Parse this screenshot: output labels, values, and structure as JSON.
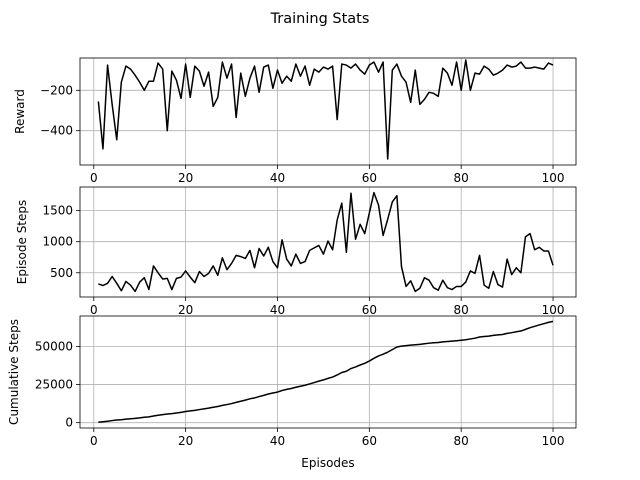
{
  "figure_title": "Training Stats",
  "chart_data": [
    {
      "type": "line",
      "title": "",
      "xlabel": "",
      "ylabel": "Reward",
      "xlim": [
        -3,
        105
      ],
      "ylim": [
        -570,
        -40
      ],
      "xticks": [
        0,
        20,
        40,
        60,
        80,
        100
      ],
      "xtick_labels": [
        "0",
        "20",
        "40",
        "60",
        "80",
        "100"
      ],
      "yticks": [
        -200,
        -400
      ],
      "ytick_labels": [
        "−200",
        "−400"
      ],
      "grid": true,
      "series": [
        {
          "name": "",
          "color": "#000000",
          "x": [
            1,
            2,
            3,
            4,
            5,
            6,
            7,
            8,
            9,
            10,
            11,
            12,
            13,
            14,
            15,
            16,
            17,
            18,
            19,
            20,
            21,
            22,
            23,
            24,
            25,
            26,
            27,
            28,
            29,
            30,
            31,
            32,
            33,
            34,
            35,
            36,
            37,
            38,
            39,
            40,
            41,
            42,
            43,
            44,
            45,
            46,
            47,
            48,
            49,
            50,
            51,
            52,
            53,
            54,
            55,
            56,
            57,
            58,
            59,
            60,
            61,
            62,
            63,
            64,
            65,
            66,
            67,
            68,
            69,
            70,
            71,
            72,
            73,
            74,
            75,
            76,
            77,
            78,
            79,
            80,
            81,
            82,
            83,
            84,
            85,
            86,
            87,
            88,
            89,
            90,
            91,
            92,
            93,
            94,
            95,
            96,
            97,
            98,
            99,
            100
          ],
          "values": [
            -255,
            -490,
            -75,
            -270,
            -445,
            -160,
            -80,
            -95,
            -125,
            -160,
            -200,
            -155,
            -155,
            -65,
            -95,
            -400,
            -105,
            -150,
            -240,
            -70,
            -235,
            -80,
            -105,
            -180,
            -110,
            -280,
            -235,
            -60,
            -140,
            -70,
            -335,
            -115,
            -230,
            -140,
            -80,
            -210,
            -85,
            -75,
            -190,
            -100,
            -165,
            -130,
            -155,
            -70,
            -130,
            -80,
            -175,
            -95,
            -110,
            -85,
            -95,
            -80,
            -345,
            -70,
            -75,
            -90,
            -70,
            -100,
            -120,
            -75,
            -60,
            -110,
            -60,
            -540,
            -100,
            -70,
            -130,
            -160,
            -260,
            -100,
            -270,
            -245,
            -210,
            -215,
            -230,
            -90,
            -115,
            -175,
            -60,
            -200,
            -50,
            -200,
            -115,
            -120,
            -80,
            -95,
            -125,
            -115,
            -100,
            -75,
            -85,
            -80,
            -60,
            -90,
            -90,
            -85,
            -90,
            -95,
            -65,
            -75
          ]
        }
      ]
    },
    {
      "type": "line",
      "title": "",
      "xlabel": "",
      "ylabel": "Episode Steps",
      "xlim": [
        -3,
        105
      ],
      "ylim": [
        110,
        1880
      ],
      "xticks": [
        0,
        20,
        40,
        60,
        80,
        100
      ],
      "xtick_labels": [
        "0",
        "20",
        "40",
        "60",
        "80",
        "100"
      ],
      "yticks": [
        500,
        1000,
        1500
      ],
      "ytick_labels": [
        "500",
        "1000",
        "1500"
      ],
      "grid": true,
      "series": [
        {
          "name": "",
          "color": "#000000",
          "x": [
            1,
            2,
            3,
            4,
            5,
            6,
            7,
            8,
            9,
            10,
            11,
            12,
            13,
            14,
            15,
            16,
            17,
            18,
            19,
            20,
            21,
            22,
            23,
            24,
            25,
            26,
            27,
            28,
            29,
            30,
            31,
            32,
            33,
            34,
            35,
            36,
            37,
            38,
            39,
            40,
            41,
            42,
            43,
            44,
            45,
            46,
            47,
            48,
            49,
            50,
            51,
            52,
            53,
            54,
            55,
            56,
            57,
            58,
            59,
            60,
            61,
            62,
            63,
            64,
            65,
            66,
            67,
            68,
            69,
            70,
            71,
            72,
            73,
            74,
            75,
            76,
            77,
            78,
            79,
            80,
            81,
            82,
            83,
            84,
            85,
            86,
            87,
            88,
            89,
            90,
            91,
            92,
            93,
            94,
            95,
            96,
            97,
            98,
            99,
            100
          ],
          "values": [
            320,
            295,
            330,
            440,
            330,
            210,
            360,
            300,
            200,
            350,
            420,
            230,
            610,
            500,
            400,
            410,
            230,
            410,
            430,
            530,
            430,
            340,
            520,
            440,
            490,
            610,
            460,
            740,
            550,
            650,
            780,
            760,
            730,
            860,
            580,
            890,
            770,
            910,
            680,
            580,
            1030,
            720,
            610,
            800,
            650,
            680,
            860,
            900,
            940,
            800,
            1010,
            870,
            1350,
            1620,
            830,
            1780,
            1040,
            1280,
            1130,
            1460,
            1790,
            1590,
            1100,
            1360,
            1640,
            1740,
            600,
            280,
            370,
            200,
            250,
            420,
            380,
            260,
            220,
            380,
            260,
            230,
            280,
            280,
            350,
            530,
            490,
            780,
            300,
            250,
            520,
            310,
            270,
            720,
            470,
            580,
            500,
            1080,
            1130,
            870,
            910,
            850,
            850,
            620
          ]
        }
      ]
    },
    {
      "type": "line",
      "title": "",
      "xlabel": "Episodes",
      "ylabel": "Cumulative Steps",
      "xlim": [
        -3,
        105
      ],
      "ylim": [
        -3500,
        70000
      ],
      "xticks": [
        0,
        20,
        40,
        60,
        80,
        100
      ],
      "xtick_labels": [
        "0",
        "20",
        "40",
        "60",
        "80",
        "100"
      ],
      "yticks": [
        0,
        25000,
        50000
      ],
      "ytick_labels": [
        "0",
        "25000",
        "50000"
      ],
      "grid": true,
      "series": [
        {
          "name": "",
          "color": "#000000",
          "x": [
            1,
            2,
            3,
            4,
            5,
            6,
            7,
            8,
            9,
            10,
            11,
            12,
            13,
            14,
            15,
            16,
            17,
            18,
            19,
            20,
            21,
            22,
            23,
            24,
            25,
            26,
            27,
            28,
            29,
            30,
            31,
            32,
            33,
            34,
            35,
            36,
            37,
            38,
            39,
            40,
            41,
            42,
            43,
            44,
            45,
            46,
            47,
            48,
            49,
            50,
            51,
            52,
            53,
            54,
            55,
            56,
            57,
            58,
            59,
            60,
            61,
            62,
            63,
            64,
            65,
            66,
            67,
            68,
            69,
            70,
            71,
            72,
            73,
            74,
            75,
            76,
            77,
            78,
            79,
            80,
            81,
            82,
            83,
            84,
            85,
            86,
            87,
            88,
            89,
            90,
            91,
            92,
            93,
            94,
            95,
            96,
            97,
            98,
            99,
            100
          ],
          "values": [
            320,
            615,
            945,
            1385,
            1715,
            1925,
            2285,
            2585,
            2785,
            3135,
            3555,
            3785,
            4395,
            4895,
            5295,
            5705,
            5935,
            6345,
            6775,
            7305,
            7735,
            8075,
            8595,
            9035,
            9525,
            10135,
            10595,
            11335,
            11885,
            12535,
            13315,
            14075,
            14805,
            15665,
            16245,
            17135,
            17905,
            18815,
            19495,
            20075,
            21105,
            21825,
            22435,
            23235,
            23885,
            24565,
            25425,
            26325,
            27265,
            28065,
            29075,
            29945,
            31295,
            32915,
            33745,
            35525,
            36565,
            37845,
            38975,
            40435,
            42225,
            43815,
            44915,
            46275,
            47915,
            49655,
            50255,
            50535,
            50905,
            51105,
            51355,
            51775,
            52155,
            52415,
            52635,
            53015,
            53275,
            53505,
            53785,
            54065,
            54415,
            54945,
            55435,
            56215,
            56515,
            56765,
            57285,
            57595,
            57865,
            58585,
            59055,
            59635,
            60135,
            61215,
            62345,
            63215,
            64125,
            64975,
            65825,
            66445
          ]
        }
      ]
    }
  ]
}
